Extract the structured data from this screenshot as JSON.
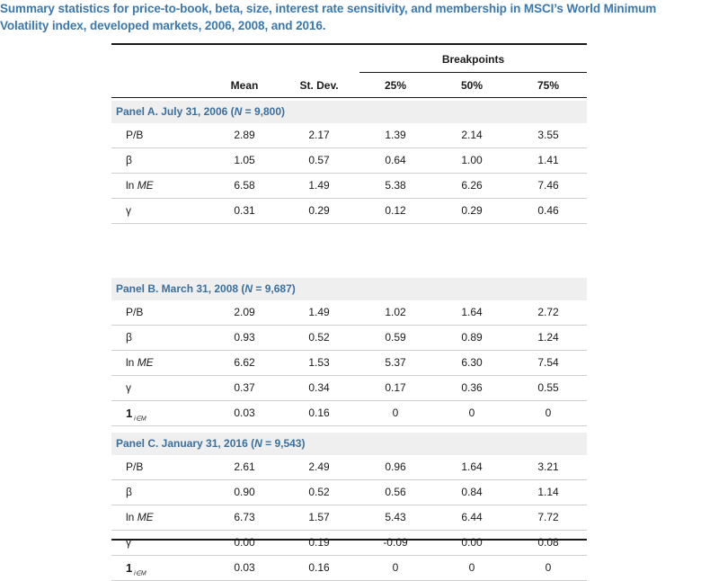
{
  "caption": "Summary statistics for price-to-book, beta, size, interest rate sensitivity, and membership in MSCI’s World Minimum Volatility index, developed markets, 2006, 2008, and 2016.",
  "table": {
    "group_header": "Breakpoints",
    "columns": [
      "Mean",
      "St. Dev.",
      "25%",
      "50%",
      "75%"
    ],
    "panels": [
      {
        "prefix": "Panel A. July 31, 2006 (",
        "n_var": "N",
        "n_value": " = 9,800)",
        "rows": [
          {
            "label": "P/B",
            "values": [
              "2.89",
              "2.17",
              "1.39",
              "2.14",
              "3.55"
            ]
          },
          {
            "label": "β",
            "values": [
              "1.05",
              "0.57",
              "0.64",
              "1.00",
              "1.41"
            ]
          },
          {
            "label_pre": "ln ",
            "label_it": "ME",
            "values": [
              "6.58",
              "1.49",
              "5.38",
              "6.26",
              "7.46"
            ]
          },
          {
            "label": "γ",
            "values": [
              "0.31",
              "0.29",
              "0.12",
              "0.29",
              "0.46"
            ]
          }
        ]
      },
      {
        "prefix": "Panel B. March 31, 2008 (",
        "n_var": "N",
        "n_value": " = 9,687)",
        "rows": [
          {
            "label": "P/B",
            "values": [
              "2.09",
              "1.49",
              "1.02",
              "1.64",
              "2.72"
            ]
          },
          {
            "label": "β",
            "values": [
              "0.93",
              "0.52",
              "0.59",
              "0.89",
              "1.24"
            ]
          },
          {
            "label_pre": "ln ",
            "label_it": "ME",
            "values": [
              "6.62",
              "1.53",
              "5.37",
              "6.30",
              "7.54"
            ]
          },
          {
            "label": "γ",
            "values": [
              "0.37",
              "0.34",
              "0.17",
              "0.36",
              "0.55"
            ]
          },
          {
            "label_ind": "1",
            "label_sub": "i∈M",
            "values": [
              "0.03",
              "0.16",
              "0",
              "0",
              "0"
            ]
          }
        ]
      },
      {
        "prefix": "Panel C. January 31, 2016 (",
        "n_var": "N",
        "n_value": " = 9,543)",
        "rows": [
          {
            "label": "P/B",
            "values": [
              "2.61",
              "2.49",
              "0.96",
              "1.64",
              "3.21"
            ]
          },
          {
            "label": "β",
            "values": [
              "0.90",
              "0.52",
              "0.56",
              "0.84",
              "1.14"
            ]
          },
          {
            "label_pre": "ln ",
            "label_it": "ME",
            "values": [
              "6.73",
              "1.57",
              "5.43",
              "6.44",
              "7.72"
            ]
          },
          {
            "label": "γ",
            "values": [
              "0.00",
              "0.19",
              "-0.09",
              "0.00",
              "0.08"
            ]
          },
          {
            "label_ind": "1",
            "label_sub": "i∈M",
            "values": [
              "0.03",
              "0.16",
              "0",
              "0",
              "0"
            ]
          }
        ]
      }
    ]
  },
  "colors": {
    "caption": "#3a78ad",
    "panel_title": "#3a6f9e",
    "panel_bg": "#efefef"
  }
}
